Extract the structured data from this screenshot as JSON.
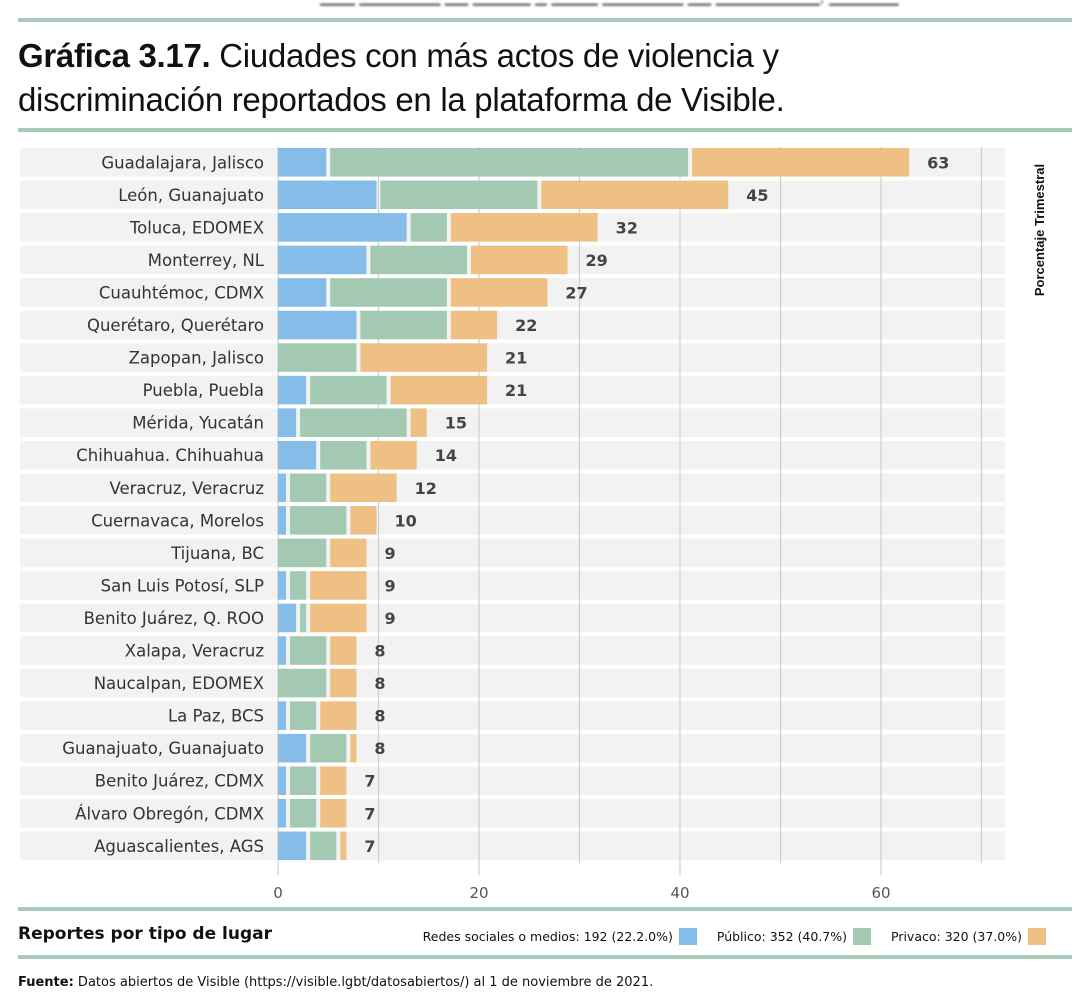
{
  "title": {
    "prefix": "Gráfica 3.17.",
    "line1": " Ciudades con más actos de violencia y",
    "line2": "discriminación reportados en la plataforma de Visible."
  },
  "colors": {
    "rule": "#a8cbb5",
    "blue": "#85bde8",
    "green": "#a3c9b3",
    "orange": "#eec084",
    "row_bg": "#f2f2f2"
  },
  "chart_data": {
    "type": "bar",
    "orientation": "horizontal",
    "stacked": true,
    "side_label": "Porcentaje Trimestral",
    "xlim": [
      0,
      70
    ],
    "xticks": [
      0,
      20,
      40,
      60
    ],
    "grid": true,
    "categories": [
      "Guadalajara, Jalisco",
      "León, Guanajuato",
      "Toluca, EDOMEX",
      "Monterrey, NL",
      "Cuauhtémoc, CDMX",
      "Querétaro, Querétaro",
      "Zapopan, Jalisco",
      "Puebla, Puebla",
      "Mérida, Yucatán",
      "Chihuahua. Chihuahua",
      "Veracruz, Veracruz",
      "Cuernavaca, Morelos",
      "Tijuana, BC",
      "San Luis Potosí, SLP",
      "Benito Juárez, Q. ROO",
      "Xalapa, Veracruz",
      "Naucalpan, EDOMEX",
      "La Paz, BCS",
      "Guanajuato, Guanajuato",
      "Benito Juárez, CDMX",
      "Álvaro Obregón, CDMX",
      "Aguascalientes, AGS"
    ],
    "totals": [
      63,
      45,
      32,
      29,
      27,
      22,
      21,
      21,
      15,
      14,
      12,
      10,
      9,
      9,
      9,
      8,
      8,
      8,
      8,
      7,
      7,
      7
    ],
    "series": [
      {
        "name": "Redes sociales o medios",
        "color": "#85bde8",
        "values": [
          5,
          10,
          13,
          9,
          5,
          8,
          0,
          3,
          2,
          4,
          1,
          1,
          0,
          1,
          2,
          1,
          0,
          1,
          3,
          1,
          1,
          3
        ]
      },
      {
        "name": "Público",
        "color": "#a3c9b3",
        "values": [
          36,
          16,
          4,
          10,
          12,
          9,
          8,
          8,
          11,
          5,
          4,
          6,
          5,
          2,
          1,
          4,
          5,
          3,
          4,
          3,
          3,
          3
        ]
      },
      {
        "name": "Privado",
        "color": "#eec084",
        "values": [
          22,
          19,
          15,
          10,
          10,
          5,
          13,
          10,
          2,
          5,
          7,
          3,
          4,
          6,
          6,
          3,
          3,
          4,
          1,
          3,
          3,
          1
        ]
      }
    ]
  },
  "legend": {
    "title": "Reportes por tipo de lugar",
    "items": [
      "Redes sociales o medios: 192 (22.2.0%)",
      "Público: 352 (40.7%)",
      "Privaco: 320 (37.0%)"
    ]
  },
  "source": {
    "label": "Fuente:",
    "text": " Datos abiertos de Visible (https://visible.lgbt/datosabiertos/) al 1 de noviembre de 2021."
  }
}
